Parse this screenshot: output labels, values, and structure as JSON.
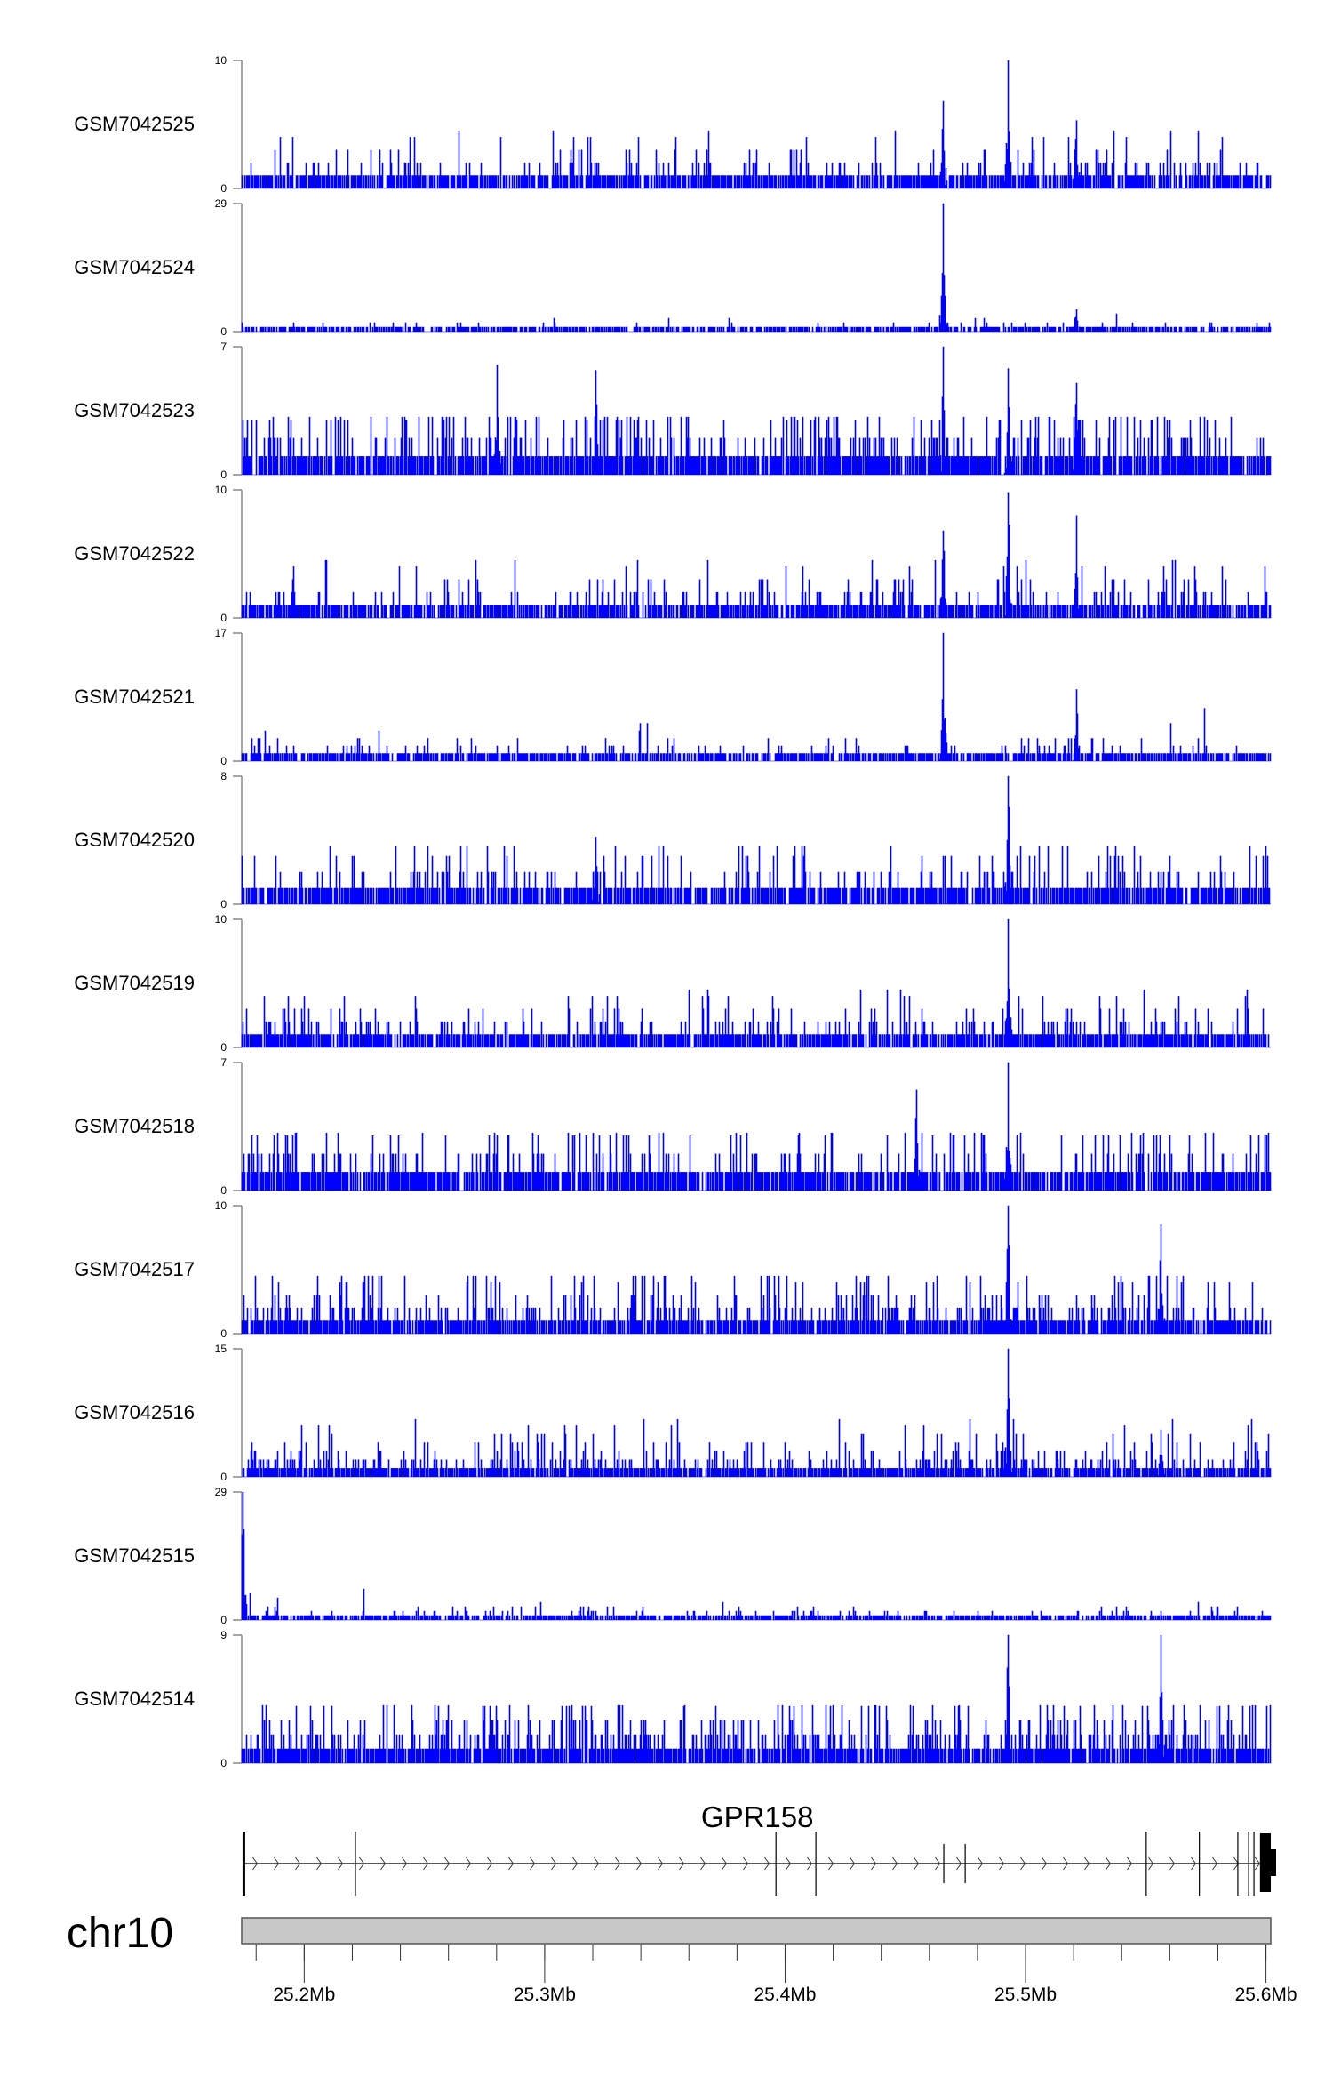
{
  "chart_data": {
    "type": "area",
    "title": "",
    "signal_color": "#0000cc",
    "fill_color": "#0000ff",
    "x_range_mb": [
      25.174,
      25.602
    ],
    "tracks": [
      {
        "name": "GSM7042525",
        "ylim": [
          0,
          10
        ],
        "bg_mean": 1.0,
        "peaks": [
          [
            25.4655,
            6.8
          ],
          [
            25.4926,
            10
          ],
          [
            25.5209,
            5.3
          ]
        ]
      },
      {
        "name": "GSM7042524",
        "ylim": [
          0,
          29
        ],
        "bg_mean": 0.6,
        "peaks": [
          [
            25.4655,
            29
          ],
          [
            25.5209,
            5
          ]
        ]
      },
      {
        "name": "GSM7042523",
        "ylim": [
          0,
          7
        ],
        "bg_mean": 1.3,
        "peaks": [
          [
            25.4655,
            7
          ],
          [
            25.4926,
            5.8
          ],
          [
            25.5209,
            5
          ],
          [
            25.28,
            6
          ],
          [
            25.321,
            5.7
          ]
        ]
      },
      {
        "name": "GSM7042522",
        "ylim": [
          0,
          10
        ],
        "bg_mean": 1.0,
        "peaks": [
          [
            25.4655,
            6.8
          ],
          [
            25.4926,
            9.8
          ],
          [
            25.5209,
            8
          ]
        ]
      },
      {
        "name": "GSM7042521",
        "ylim": [
          0,
          17
        ],
        "bg_mean": 0.8,
        "peaks": [
          [
            25.4655,
            17
          ],
          [
            25.5209,
            9.5
          ]
        ]
      },
      {
        "name": "GSM7042520",
        "ylim": [
          0,
          8
        ],
        "bg_mean": 1.0,
        "peaks": [
          [
            25.4926,
            8
          ],
          [
            25.321,
            4.2
          ]
        ]
      },
      {
        "name": "GSM7042519",
        "ylim": [
          0,
          10
        ],
        "bg_mean": 1.1,
        "peaks": [
          [
            25.4926,
            10
          ]
        ]
      },
      {
        "name": "GSM7042518",
        "ylim": [
          0,
          7
        ],
        "bg_mean": 1.1,
        "peaks": [
          [
            25.4926,
            7
          ],
          [
            25.4545,
            5.5
          ]
        ]
      },
      {
        "name": "GSM7042517",
        "ylim": [
          0,
          10
        ],
        "bg_mean": 1.4,
        "peaks": [
          [
            25.4926,
            10
          ],
          [
            25.556,
            8.5
          ]
        ]
      },
      {
        "name": "GSM7042516",
        "ylim": [
          0,
          15
        ],
        "bg_mean": 1.4,
        "peaks": [
          [
            25.4926,
            15
          ],
          [
            25.556,
            5.5
          ]
        ]
      },
      {
        "name": "GSM7042515",
        "ylim": [
          0,
          29
        ],
        "bg_mean": 0.8,
        "peaks": [
          [
            25.1745,
            29
          ]
        ]
      },
      {
        "name": "GSM7042514",
        "ylim": [
          0,
          9
        ],
        "bg_mean": 1.5,
        "peaks": [
          [
            25.4926,
            9
          ],
          [
            25.556,
            9
          ]
        ]
      }
    ],
    "gene": {
      "name": "GPR158",
      "strand": "+",
      "start_mb": 25.1749,
      "end_mb": 25.602,
      "exons_mb": [
        25.1749,
        25.2213,
        25.3962,
        25.4128,
        25.466,
        25.4749,
        25.5502,
        25.5723,
        25.5883,
        25.5928,
        25.595
      ],
      "last_exon_mb": [
        25.5975,
        25.602
      ]
    },
    "chromosome": "chr10",
    "x_axis": {
      "major_ticks_mb": [
        25.2,
        25.3,
        25.4,
        25.5,
        25.6
      ],
      "tick_labels": [
        "25.2Mb",
        "25.3Mb",
        "25.4Mb",
        "25.5Mb",
        "25.6Mb"
      ],
      "minor_step_mb": 0.02
    }
  }
}
